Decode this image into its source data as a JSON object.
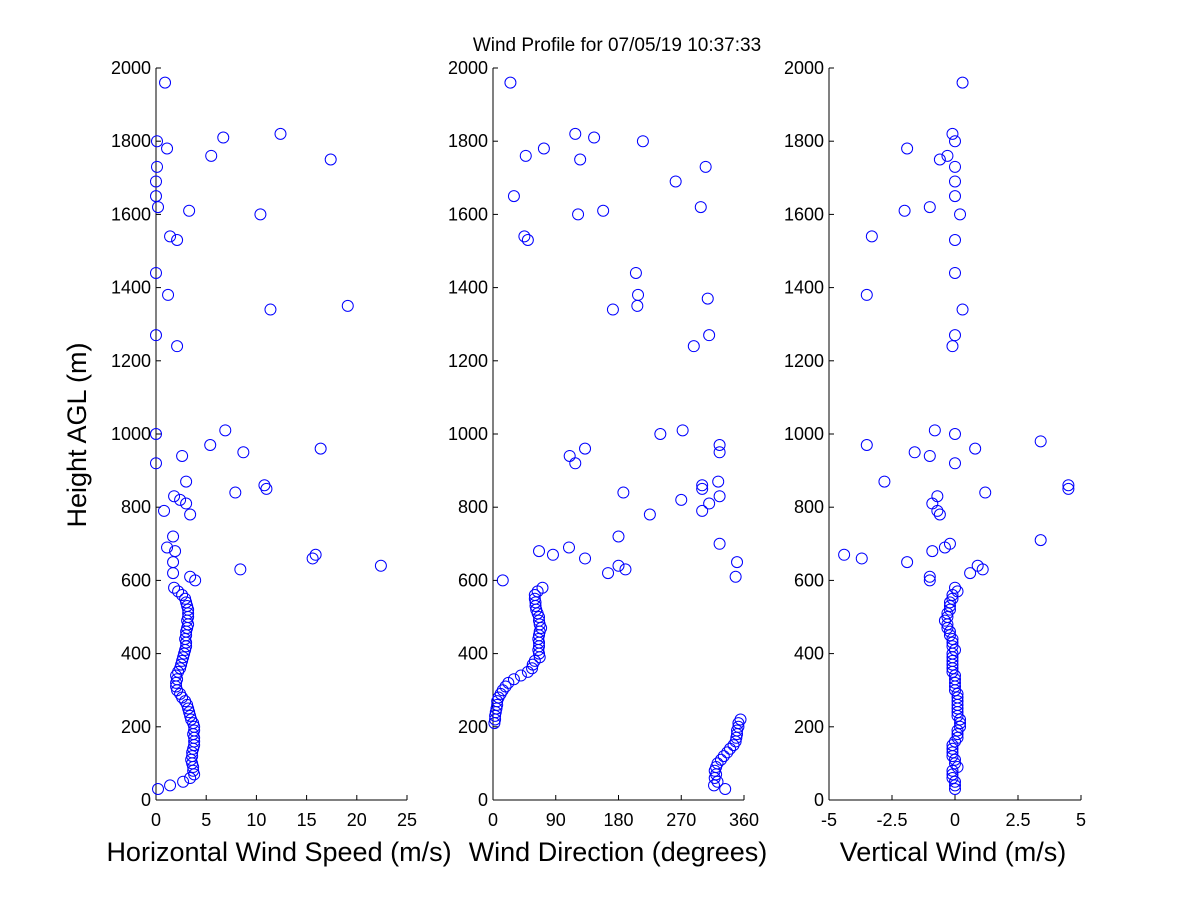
{
  "figure_title": "Wind Profile for  07/05/19 10:37:33",
  "colors": {
    "marker": "#0000ff",
    "axes": "#000000",
    "background": "#ffffff"
  },
  "chart_data": [
    {
      "type": "scatter",
      "title": "",
      "xlabel": "Horizontal Wind Speed (m/s)",
      "ylabel": "Height AGL (m)",
      "xlim": [
        0,
        25
      ],
      "ylim": [
        0,
        2000
      ],
      "xticks": [
        "0",
        "5",
        "10",
        "15",
        "20",
        "25"
      ],
      "xtick_values": [
        0,
        5,
        10,
        15,
        20,
        25
      ],
      "yticks": [
        "0",
        "200",
        "400",
        "600",
        "800",
        "1000",
        "1200",
        "1400",
        "1600",
        "1800",
        "2000"
      ],
      "ytick_values": [
        0,
        200,
        400,
        600,
        800,
        1000,
        1200,
        1400,
        1600,
        1800,
        2000
      ],
      "grid": false,
      "marker": "open-circle",
      "points": [
        [
          0.9,
          1960
        ],
        [
          0.1,
          1800
        ],
        [
          1.1,
          1780
        ],
        [
          6.7,
          1810
        ],
        [
          12.4,
          1820
        ],
        [
          5.5,
          1760
        ],
        [
          17.4,
          1750
        ],
        [
          0.1,
          1730
        ],
        [
          0,
          1690
        ],
        [
          0,
          1650
        ],
        [
          0.2,
          1620
        ],
        [
          3.3,
          1610
        ],
        [
          10.4,
          1600
        ],
        [
          1.4,
          1540
        ],
        [
          2.1,
          1530
        ],
        [
          0,
          1440
        ],
        [
          1.2,
          1380
        ],
        [
          19.1,
          1350
        ],
        [
          11.4,
          1340
        ],
        [
          0,
          1270
        ],
        [
          2.1,
          1240
        ],
        [
          6.9,
          1010
        ],
        [
          0,
          1000
        ],
        [
          5.4,
          970
        ],
        [
          16.4,
          960
        ],
        [
          8.7,
          950
        ],
        [
          2.6,
          940
        ],
        [
          0,
          920
        ],
        [
          3.0,
          870
        ],
        [
          10.8,
          860
        ],
        [
          11.0,
          850
        ],
        [
          7.9,
          840
        ],
        [
          1.8,
          830
        ],
        [
          2.4,
          820
        ],
        [
          3.0,
          810
        ],
        [
          0.8,
          790
        ],
        [
          3.4,
          780
        ],
        [
          1.7,
          720
        ],
        [
          1.1,
          690
        ],
        [
          1.9,
          680
        ],
        [
          15.9,
          670
        ],
        [
          15.6,
          660
        ],
        [
          1.7,
          650
        ],
        [
          22.4,
          640
        ],
        [
          8.4,
          630
        ],
        [
          1.7,
          620
        ],
        [
          3.4,
          610
        ],
        [
          3.9,
          600
        ],
        [
          1.8,
          580
        ],
        [
          2.2,
          570
        ],
        [
          2.6,
          560
        ],
        [
          2.9,
          550
        ],
        [
          3.0,
          540
        ],
        [
          3.1,
          530
        ],
        [
          3.2,
          520
        ],
        [
          3.2,
          510
        ],
        [
          3.2,
          500
        ],
        [
          3.1,
          490
        ],
        [
          3.2,
          480
        ],
        [
          3.1,
          470
        ],
        [
          3.0,
          460
        ],
        [
          3.0,
          450
        ],
        [
          2.9,
          440
        ],
        [
          3.0,
          430
        ],
        [
          3.0,
          420
        ],
        [
          2.9,
          410
        ],
        [
          2.8,
          400
        ],
        [
          2.7,
          390
        ],
        [
          2.6,
          380
        ],
        [
          2.5,
          370
        ],
        [
          2.4,
          360
        ],
        [
          2.2,
          350
        ],
        [
          2.0,
          340
        ],
        [
          2.1,
          330
        ],
        [
          2.0,
          320
        ],
        [
          2.0,
          310
        ],
        [
          2.1,
          300
        ],
        [
          2.4,
          290
        ],
        [
          2.6,
          280
        ],
        [
          2.9,
          270
        ],
        [
          3.1,
          260
        ],
        [
          3.2,
          250
        ],
        [
          3.3,
          240
        ],
        [
          3.4,
          230
        ],
        [
          3.5,
          220
        ],
        [
          3.7,
          210
        ],
        [
          3.8,
          200
        ],
        [
          3.8,
          190
        ],
        [
          3.7,
          180
        ],
        [
          3.8,
          170
        ],
        [
          3.8,
          160
        ],
        [
          3.8,
          150
        ],
        [
          3.7,
          140
        ],
        [
          3.6,
          130
        ],
        [
          3.6,
          120
        ],
        [
          3.5,
          110
        ],
        [
          3.6,
          100
        ],
        [
          3.7,
          90
        ],
        [
          3.7,
          80
        ],
        [
          3.8,
          70
        ],
        [
          3.4,
          60
        ],
        [
          2.7,
          50
        ],
        [
          1.4,
          40
        ],
        [
          0.2,
          30
        ]
      ]
    },
    {
      "type": "scatter",
      "title": "",
      "xlabel": "Wind Direction (degrees)",
      "ylabel": "",
      "xlim": [
        0,
        360
      ],
      "ylim": [
        0,
        2000
      ],
      "xticks": [
        "0",
        "90",
        "180",
        "270",
        "360"
      ],
      "xtick_values": [
        0,
        90,
        180,
        270,
        360
      ],
      "yticks": [
        "0",
        "200",
        "400",
        "600",
        "800",
        "1000",
        "1200",
        "1400",
        "1600",
        "1800",
        "2000"
      ],
      "ytick_values": [
        0,
        200,
        400,
        600,
        800,
        1000,
        1200,
        1400,
        1600,
        1800,
        2000
      ],
      "grid": false,
      "marker": "open-circle",
      "points": [
        [
          25,
          1960
        ],
        [
          118,
          1820
        ],
        [
          145,
          1810
        ],
        [
          215,
          1800
        ],
        [
          73,
          1780
        ],
        [
          47,
          1760
        ],
        [
          125,
          1750
        ],
        [
          305,
          1730
        ],
        [
          262,
          1690
        ],
        [
          30,
          1650
        ],
        [
          298,
          1620
        ],
        [
          122,
          1600
        ],
        [
          158,
          1610
        ],
        [
          45,
          1540
        ],
        [
          50,
          1530
        ],
        [
          205,
          1440
        ],
        [
          208,
          1380
        ],
        [
          308,
          1370
        ],
        [
          207,
          1350
        ],
        [
          172,
          1340
        ],
        [
          310,
          1270
        ],
        [
          288,
          1240
        ],
        [
          272,
          1010
        ],
        [
          240,
          1000
        ],
        [
          325,
          970
        ],
        [
          325,
          950
        ],
        [
          132,
          960
        ],
        [
          110,
          940
        ],
        [
          118,
          920
        ],
        [
          323,
          870
        ],
        [
          300,
          860
        ],
        [
          300,
          850
        ],
        [
          187,
          840
        ],
        [
          325,
          830
        ],
        [
          270,
          820
        ],
        [
          310,
          810
        ],
        [
          300,
          790
        ],
        [
          225,
          780
        ],
        [
          180,
          720
        ],
        [
          325,
          700
        ],
        [
          66,
          680
        ],
        [
          109,
          690
        ],
        [
          86,
          670
        ],
        [
          132,
          660
        ],
        [
          350,
          650
        ],
        [
          180,
          640
        ],
        [
          190,
          630
        ],
        [
          165,
          620
        ],
        [
          348,
          610
        ],
        [
          14,
          600
        ],
        [
          71,
          580
        ],
        [
          64,
          570
        ],
        [
          60,
          560
        ],
        [
          60,
          550
        ],
        [
          61,
          540
        ],
        [
          61,
          530
        ],
        [
          62,
          520
        ],
        [
          64,
          510
        ],
        [
          66,
          500
        ],
        [
          66,
          490
        ],
        [
          67,
          480
        ],
        [
          69,
          470
        ],
        [
          67,
          460
        ],
        [
          66,
          450
        ],
        [
          65,
          440
        ],
        [
          66,
          430
        ],
        [
          66,
          420
        ],
        [
          65,
          410
        ],
        [
          66,
          400
        ],
        [
          67,
          390
        ],
        [
          60,
          380
        ],
        [
          57,
          370
        ],
        [
          56,
          360
        ],
        [
          50,
          350
        ],
        [
          40,
          340
        ],
        [
          30,
          330
        ],
        [
          22,
          320
        ],
        [
          18,
          310
        ],
        [
          14,
          300
        ],
        [
          11,
          290
        ],
        [
          8,
          280
        ],
        [
          6,
          270
        ],
        [
          6,
          260
        ],
        [
          5,
          250
        ],
        [
          4,
          240
        ],
        [
          3,
          230
        ],
        [
          3,
          220
        ],
        [
          2,
          210
        ],
        [
          355,
          220
        ],
        [
          352,
          210
        ],
        [
          352,
          200
        ],
        [
          350,
          190
        ],
        [
          350,
          180
        ],
        [
          349,
          170
        ],
        [
          348,
          160
        ],
        [
          345,
          150
        ],
        [
          340,
          140
        ],
        [
          336,
          130
        ],
        [
          331,
          120
        ],
        [
          327,
          110
        ],
        [
          322,
          100
        ],
        [
          320,
          90
        ],
        [
          318,
          80
        ],
        [
          320,
          70
        ],
        [
          318,
          60
        ],
        [
          322,
          50
        ],
        [
          317,
          40
        ],
        [
          333,
          30
        ]
      ]
    },
    {
      "type": "scatter",
      "title": "",
      "xlabel": "Vertical Wind (m/s)",
      "ylabel": "",
      "xlim": [
        -5,
        5
      ],
      "ylim": [
        0,
        2000
      ],
      "xticks": [
        "-5",
        "-2.5",
        "0",
        "2.5",
        "5"
      ],
      "xtick_values": [
        -5,
        -2.5,
        0,
        2.5,
        5
      ],
      "yticks": [
        "0",
        "200",
        "400",
        "600",
        "800",
        "1000",
        "1200",
        "1400",
        "1600",
        "1800",
        "2000"
      ],
      "ytick_values": [
        0,
        200,
        400,
        600,
        800,
        1000,
        1200,
        1400,
        1600,
        1800,
        2000
      ],
      "grid": false,
      "marker": "open-circle",
      "points": [
        [
          0.3,
          1960
        ],
        [
          -0.1,
          1820
        ],
        [
          0,
          1800
        ],
        [
          -1.9,
          1780
        ],
        [
          -0.3,
          1760
        ],
        [
          -0.6,
          1750
        ],
        [
          0,
          1730
        ],
        [
          0,
          1690
        ],
        [
          0,
          1650
        ],
        [
          -2.0,
          1610
        ],
        [
          -1.0,
          1620
        ],
        [
          0.2,
          1600
        ],
        [
          -3.3,
          1540
        ],
        [
          0,
          1530
        ],
        [
          0,
          1440
        ],
        [
          -3.5,
          1380
        ],
        [
          0.3,
          1340
        ],
        [
          0,
          1270
        ],
        [
          -0.1,
          1240
        ],
        [
          -0.8,
          1010
        ],
        [
          0,
          1000
        ],
        [
          3.4,
          980
        ],
        [
          -3.5,
          970
        ],
        [
          0.8,
          960
        ],
        [
          -1.6,
          950
        ],
        [
          -1.0,
          940
        ],
        [
          0,
          920
        ],
        [
          4.5,
          860
        ],
        [
          4.5,
          850
        ],
        [
          -2.8,
          870
        ],
        [
          1.2,
          840
        ],
        [
          -0.7,
          830
        ],
        [
          -0.9,
          810
        ],
        [
          -0.7,
          790
        ],
        [
          -0.6,
          780
        ],
        [
          3.4,
          710
        ],
        [
          -0.2,
          700
        ],
        [
          -0.4,
          690
        ],
        [
          -0.9,
          680
        ],
        [
          -4.4,
          670
        ],
        [
          -3.7,
          660
        ],
        [
          -1.9,
          650
        ],
        [
          0.9,
          640
        ],
        [
          1.1,
          630
        ],
        [
          0.6,
          620
        ],
        [
          -1.0,
          610
        ],
        [
          -1.0,
          600
        ],
        [
          0,
          580
        ],
        [
          0.1,
          570
        ],
        [
          -0.1,
          560
        ],
        [
          -0.1,
          550
        ],
        [
          -0.2,
          540
        ],
        [
          -0.2,
          530
        ],
        [
          -0.2,
          520
        ],
        [
          -0.3,
          510
        ],
        [
          -0.3,
          500
        ],
        [
          -0.4,
          490
        ],
        [
          -0.3,
          480
        ],
        [
          -0.3,
          470
        ],
        [
          -0.2,
          460
        ],
        [
          -0.2,
          450
        ],
        [
          -0.1,
          440
        ],
        [
          -0.1,
          430
        ],
        [
          -0.1,
          420
        ],
        [
          0,
          410
        ],
        [
          -0.1,
          400
        ],
        [
          -0.1,
          390
        ],
        [
          -0.1,
          380
        ],
        [
          -0.1,
          370
        ],
        [
          -0.1,
          360
        ],
        [
          -0.1,
          350
        ],
        [
          0,
          340
        ],
        [
          0,
          330
        ],
        [
          0,
          320
        ],
        [
          0,
          310
        ],
        [
          0,
          300
        ],
        [
          0.1,
          290
        ],
        [
          0.1,
          280
        ],
        [
          0.1,
          270
        ],
        [
          0.1,
          260
        ],
        [
          0.1,
          250
        ],
        [
          0.1,
          240
        ],
        [
          0.1,
          230
        ],
        [
          0.2,
          220
        ],
        [
          0.2,
          210
        ],
        [
          0.2,
          200
        ],
        [
          0.1,
          190
        ],
        [
          0.1,
          180
        ],
        [
          0.1,
          170
        ],
        [
          0,
          160
        ],
        [
          -0.1,
          150
        ],
        [
          -0.1,
          140
        ],
        [
          -0.1,
          130
        ],
        [
          -0.1,
          120
        ],
        [
          0,
          110
        ],
        [
          0,
          100
        ],
        [
          0.1,
          90
        ],
        [
          -0.1,
          80
        ],
        [
          -0.1,
          70
        ],
        [
          -0.1,
          60
        ],
        [
          0,
          50
        ],
        [
          0,
          40
        ],
        [
          0,
          30
        ]
      ]
    }
  ]
}
